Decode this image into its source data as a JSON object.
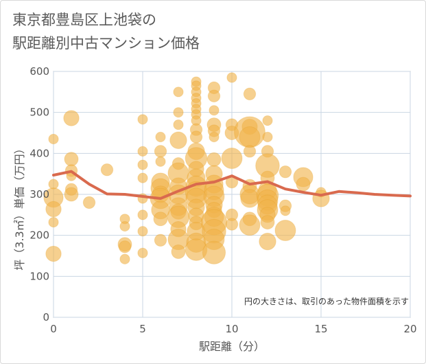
{
  "chart_data": {
    "type": "scatter",
    "title_lines": [
      "東京都豊島区上池袋の",
      "駅距離別中古マンション価格"
    ],
    "xlabel": "駅距離（分）",
    "ylabel": "坪（3.3㎡）単価（万円）",
    "note": "円の大きさは、取引のあった物件面積を示す",
    "xlim": [
      0,
      20
    ],
    "ylim": [
      0,
      600
    ],
    "x_ticks": [
      "0",
      "5",
      "10",
      "15",
      "20"
    ],
    "y_ticks": [
      "0",
      "100",
      "200",
      "300",
      "400",
      "500",
      "600"
    ],
    "grid": true,
    "colors": {
      "bubble": "#f0b34a",
      "bubble_stroke": "#e39a1c",
      "line": "#d96a4e",
      "grid": "#c9d6e3",
      "plot_border": "#9aa0a6"
    },
    "series": [
      {
        "kind": "bubble",
        "points": [
          {
            "x": 0,
            "y": 435,
            "s": 2
          },
          {
            "x": 0,
            "y": 325,
            "s": 2
          },
          {
            "x": 0,
            "y": 292,
            "s": 8
          },
          {
            "x": 0,
            "y": 264,
            "s": 5
          },
          {
            "x": 0,
            "y": 232,
            "s": 2
          },
          {
            "x": 0,
            "y": 155,
            "s": 5
          },
          {
            "x": 1,
            "y": 486,
            "s": 5
          },
          {
            "x": 1,
            "y": 386,
            "s": 4
          },
          {
            "x": 1,
            "y": 358,
            "s": 3
          },
          {
            "x": 1,
            "y": 345,
            "s": 2
          },
          {
            "x": 1,
            "y": 312,
            "s": 3
          },
          {
            "x": 1,
            "y": 300,
            "s": 4
          },
          {
            "x": 2,
            "y": 280,
            "s": 3
          },
          {
            "x": 3,
            "y": 360,
            "s": 3
          },
          {
            "x": 4,
            "y": 240,
            "s": 2
          },
          {
            "x": 4,
            "y": 222,
            "s": 2
          },
          {
            "x": 4,
            "y": 178,
            "s": 4
          },
          {
            "x": 4,
            "y": 172,
            "s": 3
          },
          {
            "x": 4,
            "y": 142,
            "s": 2
          },
          {
            "x": 5,
            "y": 483,
            "s": 2
          },
          {
            "x": 5,
            "y": 405,
            "s": 2
          },
          {
            "x": 5,
            "y": 372,
            "s": 2
          },
          {
            "x": 5,
            "y": 340,
            "s": 2
          },
          {
            "x": 5,
            "y": 290,
            "s": 2
          },
          {
            "x": 5,
            "y": 250,
            "s": 2
          },
          {
            "x": 5,
            "y": 210,
            "s": 2
          },
          {
            "x": 5,
            "y": 157,
            "s": 2
          },
          {
            "x": 6,
            "y": 440,
            "s": 2
          },
          {
            "x": 6,
            "y": 405,
            "s": 3
          },
          {
            "x": 6,
            "y": 380,
            "s": 2
          },
          {
            "x": 6,
            "y": 330,
            "s": 7
          },
          {
            "x": 6,
            "y": 315,
            "s": 8
          },
          {
            "x": 6,
            "y": 300,
            "s": 6
          },
          {
            "x": 6,
            "y": 290,
            "s": 9
          },
          {
            "x": 6,
            "y": 262,
            "s": 7
          },
          {
            "x": 6,
            "y": 240,
            "s": 4
          },
          {
            "x": 6,
            "y": 188,
            "s": 3
          },
          {
            "x": 7,
            "y": 550,
            "s": 2
          },
          {
            "x": 7,
            "y": 500,
            "s": 2
          },
          {
            "x": 7,
            "y": 470,
            "s": 2
          },
          {
            "x": 7,
            "y": 432,
            "s": 6
          },
          {
            "x": 7,
            "y": 375,
            "s": 3
          },
          {
            "x": 7,
            "y": 352,
            "s": 9
          },
          {
            "x": 7,
            "y": 320,
            "s": 6
          },
          {
            "x": 7,
            "y": 300,
            "s": 8
          },
          {
            "x": 7,
            "y": 270,
            "s": 7
          },
          {
            "x": 7,
            "y": 258,
            "s": 5
          },
          {
            "x": 7,
            "y": 245,
            "s": 10
          },
          {
            "x": 7,
            "y": 215,
            "s": 5
          },
          {
            "x": 7,
            "y": 190,
            "s": 9
          },
          {
            "x": 7,
            "y": 160,
            "s": 4
          },
          {
            "x": 8,
            "y": 575,
            "s": 2
          },
          {
            "x": 8,
            "y": 565,
            "s": 2
          },
          {
            "x": 8,
            "y": 550,
            "s": 2
          },
          {
            "x": 8,
            "y": 535,
            "s": 2
          },
          {
            "x": 8,
            "y": 522,
            "s": 2
          },
          {
            "x": 8,
            "y": 508,
            "s": 2
          },
          {
            "x": 8,
            "y": 495,
            "s": 2
          },
          {
            "x": 8,
            "y": 480,
            "s": 2
          },
          {
            "x": 8,
            "y": 458,
            "s": 3
          },
          {
            "x": 8,
            "y": 440,
            "s": 3
          },
          {
            "x": 8,
            "y": 405,
            "s": 6
          },
          {
            "x": 8,
            "y": 388,
            "s": 10
          },
          {
            "x": 8,
            "y": 362,
            "s": 5
          },
          {
            "x": 8,
            "y": 340,
            "s": 7
          },
          {
            "x": 8,
            "y": 320,
            "s": 9
          },
          {
            "x": 8,
            "y": 305,
            "s": 10
          },
          {
            "x": 8,
            "y": 290,
            "s": 9
          },
          {
            "x": 8,
            "y": 268,
            "s": 6
          },
          {
            "x": 8,
            "y": 248,
            "s": 5
          },
          {
            "x": 8,
            "y": 230,
            "s": 4
          },
          {
            "x": 8,
            "y": 210,
            "s": 7
          },
          {
            "x": 8,
            "y": 182,
            "s": 8
          },
          {
            "x": 8,
            "y": 165,
            "s": 10
          },
          {
            "x": 9,
            "y": 560,
            "s": 3
          },
          {
            "x": 9,
            "y": 540,
            "s": 3
          },
          {
            "x": 9,
            "y": 505,
            "s": 2
          },
          {
            "x": 9,
            "y": 470,
            "s": 4
          },
          {
            "x": 9,
            "y": 455,
            "s": 3
          },
          {
            "x": 9,
            "y": 440,
            "s": 2
          },
          {
            "x": 9,
            "y": 385,
            "s": 4
          },
          {
            "x": 9,
            "y": 350,
            "s": 6
          },
          {
            "x": 9,
            "y": 325,
            "s": 7
          },
          {
            "x": 9,
            "y": 310,
            "s": 8
          },
          {
            "x": 9,
            "y": 295,
            "s": 9
          },
          {
            "x": 9,
            "y": 275,
            "s": 6
          },
          {
            "x": 9,
            "y": 262,
            "s": 5
          },
          {
            "x": 9,
            "y": 245,
            "s": 8
          },
          {
            "x": 9,
            "y": 232,
            "s": 14
          },
          {
            "x": 9,
            "y": 210,
            "s": 12
          },
          {
            "x": 9,
            "y": 190,
            "s": 9
          },
          {
            "x": 9,
            "y": 158,
            "s": 11
          },
          {
            "x": 10,
            "y": 585,
            "s": 2
          },
          {
            "x": 10,
            "y": 470,
            "s": 3
          },
          {
            "x": 10,
            "y": 450,
            "s": 4
          },
          {
            "x": 10,
            "y": 388,
            "s": 9
          },
          {
            "x": 10,
            "y": 330,
            "s": 3
          },
          {
            "x": 10,
            "y": 250,
            "s": 3
          },
          {
            "x": 10,
            "y": 227,
            "s": 3
          },
          {
            "x": 11,
            "y": 545,
            "s": 3
          },
          {
            "x": 11,
            "y": 465,
            "s": 5
          },
          {
            "x": 11,
            "y": 452,
            "s": 20
          },
          {
            "x": 11,
            "y": 440,
            "s": 9
          },
          {
            "x": 11,
            "y": 405,
            "s": 3
          },
          {
            "x": 11,
            "y": 320,
            "s": 4
          },
          {
            "x": 11,
            "y": 300,
            "s": 8
          },
          {
            "x": 11,
            "y": 290,
            "s": 7
          },
          {
            "x": 11,
            "y": 240,
            "s": 4
          },
          {
            "x": 11,
            "y": 225,
            "s": 9
          },
          {
            "x": 12,
            "y": 480,
            "s": 2
          },
          {
            "x": 12,
            "y": 440,
            "s": 2
          },
          {
            "x": 12,
            "y": 405,
            "s": 3
          },
          {
            "x": 12,
            "y": 370,
            "s": 12
          },
          {
            "x": 12,
            "y": 340,
            "s": 4
          },
          {
            "x": 12,
            "y": 310,
            "s": 7
          },
          {
            "x": 12,
            "y": 298,
            "s": 10
          },
          {
            "x": 12,
            "y": 286,
            "s": 9
          },
          {
            "x": 12,
            "y": 275,
            "s": 8
          },
          {
            "x": 12,
            "y": 262,
            "s": 9
          },
          {
            "x": 12,
            "y": 250,
            "s": 5
          },
          {
            "x": 12,
            "y": 232,
            "s": 4
          },
          {
            "x": 12,
            "y": 185,
            "s": 6
          },
          {
            "x": 13,
            "y": 355,
            "s": 3
          },
          {
            "x": 13,
            "y": 272,
            "s": 3
          },
          {
            "x": 13,
            "y": 260,
            "s": 2
          },
          {
            "x": 13,
            "y": 212,
            "s": 9
          },
          {
            "x": 14,
            "y": 342,
            "s": 8
          },
          {
            "x": 14,
            "y": 325,
            "s": 4
          },
          {
            "x": 15,
            "y": 305,
            "s": 2
          },
          {
            "x": 15,
            "y": 290,
            "s": 6
          }
        ]
      },
      {
        "kind": "line",
        "x": [
          0,
          1,
          2,
          3,
          4,
          5,
          6,
          7,
          8,
          9,
          10,
          11,
          12,
          13,
          14,
          15,
          16,
          17,
          18,
          19,
          20
        ],
        "y": [
          347,
          356,
          325,
          301,
          300,
          295,
          290,
          308,
          325,
          330,
          345,
          325,
          331,
          313,
          305,
          298,
          307,
          304,
          300,
          298,
          296
        ]
      }
    ]
  }
}
